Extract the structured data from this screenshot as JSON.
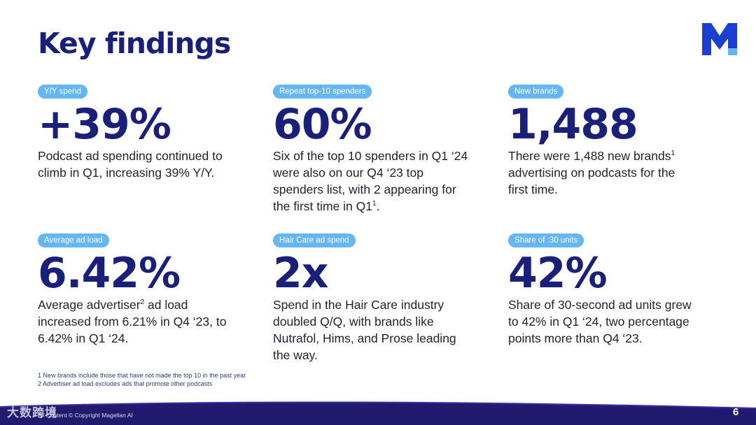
{
  "title": "Key findings",
  "brand": {
    "logo_icon": "magellan-m-logo",
    "color": "#1b3fd0"
  },
  "colors": {
    "navy": "#1a1f7a",
    "pill": "#64b6f6",
    "band": "#211a6e"
  },
  "cards": [
    {
      "tag": "Y/Y spend",
      "value": "+39%",
      "lines": [
        "Podcast ad spending continued to",
        "climb in Q1, increasing 39% Y/Y."
      ]
    },
    {
      "tag": "Repeat top-10 spenders",
      "value": "60%",
      "lines": [
        "Six of the top 10 spenders in Q1 ‘24",
        "were also on our Q4 ‘23 top",
        "spenders list, with 2 appearing for"
      ],
      "last_pre": "the first time in Q1",
      "last_sup": "1",
      "last_post": "."
    },
    {
      "tag": "New brands",
      "value": "1,488",
      "first_pre": "There were 1,488 new brands",
      "first_sup": "1",
      "lines": [
        "advertising on podcasts for the",
        "first time."
      ]
    },
    {
      "tag": "Average ad load",
      "value": "6.42%",
      "first_pre": "Average advertiser",
      "first_sup": "2",
      "first_post": " ad load",
      "lines": [
        "increased from 6.21% in Q4 ‘23, to",
        "6.42% in Q1 ‘24."
      ]
    },
    {
      "tag": "Hair Care ad spend",
      "value": "2x",
      "lines": [
        "Spend in the Hair Care industry",
        "doubled Q/Q, with brands like",
        "Nutrafol, Hims, and Prose leading",
        "the way."
      ]
    },
    {
      "tag": "Share of :30 units",
      "value": "42%",
      "lines": [
        "Share of 30-second ad units grew",
        "to 42% in Q1 ‘24, two percentage",
        "points more than Q4 ‘23."
      ]
    }
  ],
  "footnotes": [
    "1 New brands include those that have not made the top 10 in the past year",
    "2 Advertiser ad load excludes ads that promote other podcasts"
  ],
  "copyright": "All Content © Copyright Magellan AI",
  "watermark": "大数跨境",
  "page_number": "6"
}
